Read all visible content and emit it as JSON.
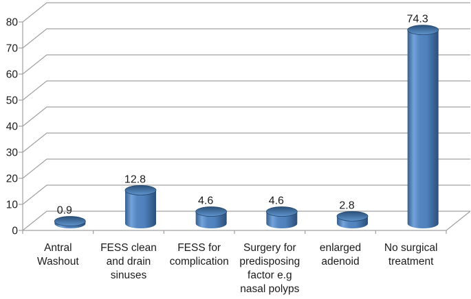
{
  "chart_data": {
    "type": "bar",
    "style": "3d-cylinder",
    "categories": [
      [
        "Antral",
        "Washout"
      ],
      [
        "FESS clean",
        "and drain",
        "sinuses"
      ],
      [
        "FESS for",
        "complication"
      ],
      [
        "Surgery for",
        "predisposing",
        "factor e.g",
        "nasal polyps"
      ],
      [
        "enlarged",
        "adenoid"
      ],
      [
        "No surgical",
        "treatment"
      ]
    ],
    "values": [
      0.9,
      12.8,
      4.6,
      4.6,
      2.8,
      74.3
    ],
    "data_labels": [
      "0.9",
      "12.8",
      "4.6",
      "4.6",
      "2.8",
      "74.3"
    ],
    "y_ticks": [
      0,
      10,
      20,
      30,
      40,
      50,
      60,
      70,
      80
    ],
    "ylim": [
      0,
      80
    ],
    "grid": true,
    "legend": false,
    "colors": {
      "bar_main": "#4F81BD",
      "bar_light": "#73A3DA",
      "bar_mid": "#5586C1",
      "bar_dark": "#2B4F79",
      "bar_edge_left": "#36608F",
      "bar_top_dark": "#2B5078",
      "bar_top_light": "#6095CF",
      "bar_top_rim": "#24466B",
      "grid": "#A0A0A0",
      "text": "#1A1A1A",
      "background": "#FFFFFF"
    }
  }
}
